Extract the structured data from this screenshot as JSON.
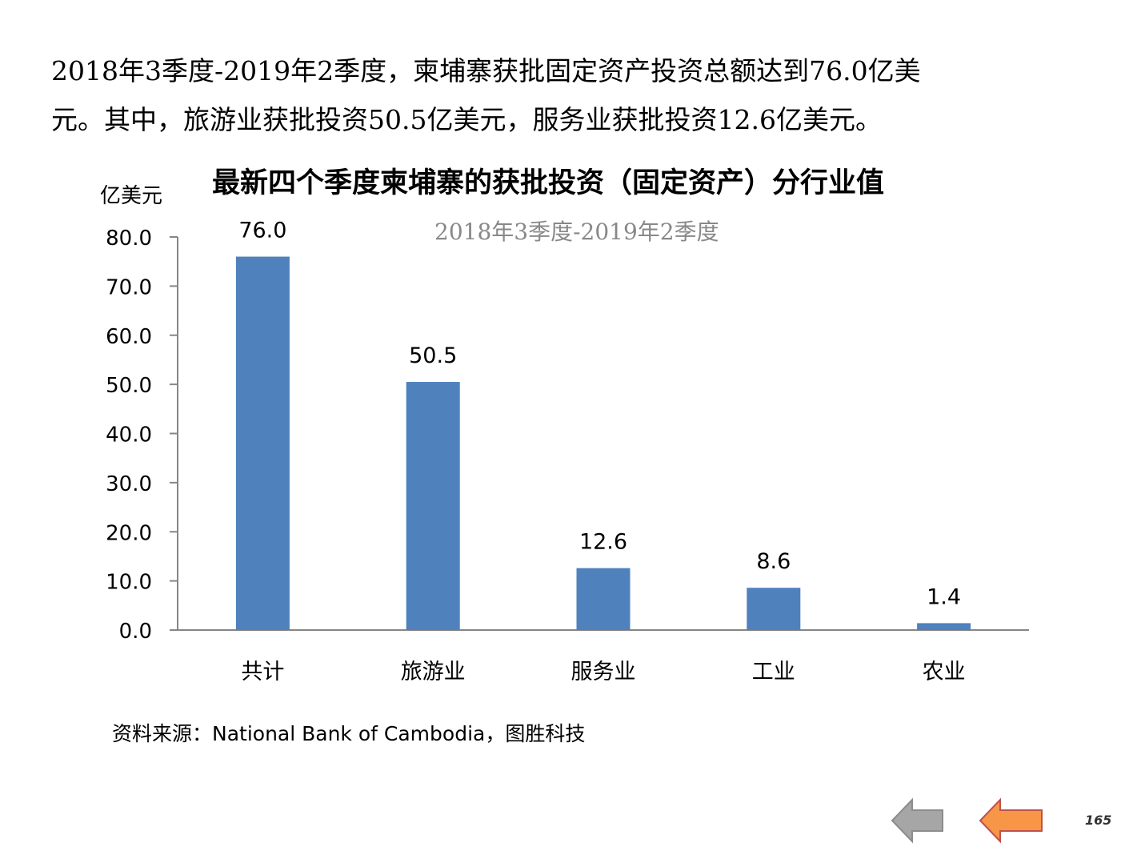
{
  "intro": {
    "line1": "2018年3季度-2019年2季度，柬埔寨获批固定资产投资总额达到76.0亿美",
    "line2": "元。其中，旅游业获批投资50.5亿美元，服务业获批投资12.6亿美元。"
  },
  "chart_data": {
    "type": "bar",
    "title": "最新四个季度柬埔寨的获批投资（固定资产）分行业值",
    "subtitle": "2018年3季度-2019年2季度",
    "ylabel": "亿美元",
    "xlabel": "",
    "categories": [
      "共计",
      "旅游业",
      "服务业",
      "工业",
      "农业"
    ],
    "values": [
      76.0,
      50.5,
      12.6,
      8.6,
      1.4
    ],
    "data_labels": [
      "76.0",
      "50.5",
      "12.6",
      "8.6",
      "1.4"
    ],
    "ylim": [
      0,
      80
    ],
    "yticks": [
      "0.0",
      "10.0",
      "20.0",
      "30.0",
      "40.0",
      "50.0",
      "60.0",
      "70.0",
      "80.0"
    ],
    "grid": false,
    "legend": "none",
    "bar_color": "#4f81bd",
    "axis_color": "#868686"
  },
  "source": "资料来源：National Bank of Cambodia，图胜科技",
  "nav": {
    "back_icon": "arrow-left-icon",
    "back_color": "#a6a6a6",
    "next_icon": "arrow-left-icon",
    "next_color": "#f79646"
  },
  "page_number": "165"
}
